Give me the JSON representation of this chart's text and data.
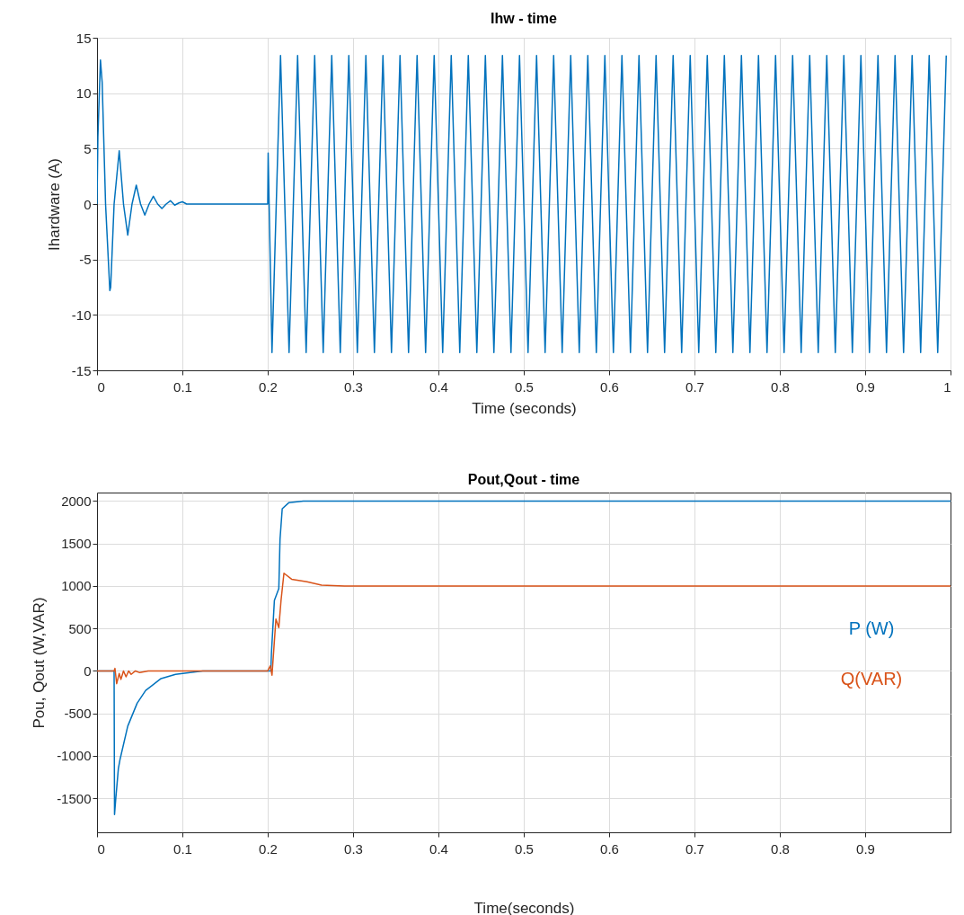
{
  "chart_data": [
    {
      "type": "line",
      "title": "Ihw - time",
      "xlabel": "Time (seconds)",
      "ylabel": "Ihardware      (A)",
      "xlim": [
        0,
        1
      ],
      "ylim": [
        -15,
        15
      ],
      "xticks": [
        0,
        0.1,
        0.2,
        0.3,
        0.4,
        0.5,
        0.6,
        0.7,
        0.8,
        0.9,
        1
      ],
      "yticks": [
        -15,
        -10,
        -5,
        0,
        5,
        10,
        15
      ],
      "grid": true,
      "series": [
        {
          "color": "#0072bd",
          "x": [
            0,
            0.001,
            0.004,
            0.006,
            0.01,
            0.015,
            0.016,
            0.02,
            0.026,
            0.031,
            0.036,
            0.041,
            0.046,
            0.051,
            0.056,
            0.061,
            0.066,
            0.071,
            0.076,
            0.081,
            0.086,
            0.091,
            0.096,
            0.1,
            0.105,
            0.2,
            0.2005,
            0.205,
            0.215,
            0.225,
            0.235,
            0.245,
            0.255,
            0.265,
            0.275,
            0.285,
            0.295,
            0.305,
            0.315,
            0.325,
            0.335,
            0.345,
            0.355,
            0.365,
            0.375,
            0.385,
            0.395,
            0.405,
            0.415,
            0.425,
            0.435,
            0.445,
            0.455,
            0.465,
            0.475,
            0.485,
            0.495,
            0.505,
            0.515,
            0.525,
            0.535,
            0.545,
            0.555,
            0.565,
            0.575,
            0.585,
            0.595,
            0.605,
            0.615,
            0.625,
            0.635,
            0.645,
            0.655,
            0.665,
            0.675,
            0.685,
            0.695,
            0.705,
            0.715,
            0.725,
            0.735,
            0.745,
            0.755,
            0.765,
            0.775,
            0.785,
            0.795,
            0.805,
            0.815,
            0.825,
            0.835,
            0.845,
            0.855,
            0.865,
            0.875,
            0.885,
            0.895,
            0.905,
            0.915,
            0.925,
            0.935,
            0.945,
            0.955,
            0.965,
            0.975,
            0.985,
            0.995
          ],
          "values": [
            0,
            6,
            13,
            11,
            0,
            -7.8,
            -7.5,
            0,
            4.8,
            0,
            -2.8,
            0,
            1.7,
            0,
            -1.0,
            0,
            0.7,
            0,
            -0.4,
            0,
            0.3,
            -0.1,
            0.1,
            0.2,
            0,
            0,
            4.6,
            -13.4,
            13.4,
            -13.4,
            13.4,
            -13.4,
            13.4,
            -13.4,
            13.4,
            -13.4,
            13.4,
            -13.4,
            13.4,
            -13.4,
            13.4,
            -13.4,
            13.4,
            -13.4,
            13.4,
            -13.4,
            13.4,
            -13.4,
            13.4,
            -13.4,
            13.4,
            -13.4,
            13.4,
            -13.4,
            13.4,
            -13.4,
            13.4,
            -13.4,
            13.4,
            -13.4,
            13.4,
            -13.4,
            13.4,
            -13.4,
            13.4,
            -13.4,
            13.4,
            -13.4,
            13.4,
            -13.4,
            13.4,
            -13.4,
            13.4,
            -13.4,
            13.4,
            -13.4,
            13.4,
            -13.4,
            13.4,
            -13.4,
            13.4,
            -13.4,
            13.4,
            -13.4,
            13.4,
            -13.4,
            13.4,
            -13.4,
            13.4,
            -13.4,
            13.4,
            -13.4,
            13.4,
            -13.4,
            13.4,
            -13.4,
            13.4,
            -13.4,
            13.4,
            -13.4,
            13.4,
            -13.4,
            13.4,
            -13.4,
            13.4,
            -13.4,
            13.4
          ]
        }
      ]
    },
    {
      "type": "line",
      "title": "Pout,Qout - time",
      "xlabel": "Time(seconds)",
      "ylabel": "Pou, Qout      (W,VAR)",
      "xlim": [
        0,
        1
      ],
      "ylim": [
        -1900,
        2100
      ],
      "xticks": [
        0,
        0.1,
        0.2,
        0.3,
        0.4,
        0.5,
        0.6,
        0.7,
        0.8,
        0.9
      ],
      "yticks": [
        -1500,
        -1000,
        -500,
        0,
        500,
        1000,
        1500,
        2000
      ],
      "grid": true,
      "series": [
        {
          "name": "P (W)",
          "color": "#0072bd",
          "x": [
            0,
            0.02,
            0.0205,
            0.022,
            0.025,
            0.027,
            0.036,
            0.047,
            0.057,
            0.075,
            0.092,
            0.124,
            0.2,
            0.2036,
            0.2044,
            0.2078,
            0.213,
            0.2144,
            0.217,
            0.2246,
            0.2417,
            1
          ],
          "values": [
            0,
            0,
            -1690,
            -1500,
            -1150,
            -1040,
            -650,
            -380,
            -230,
            -90,
            -40,
            0,
            0,
            0,
            220,
            830,
            970,
            1550,
            1910,
            1980,
            2000,
            2000
          ]
        },
        {
          "name": "Q(VAR)",
          "color": "#d95319",
          "x": [
            0,
            0.02,
            0.021,
            0.023,
            0.026,
            0.028,
            0.031,
            0.034,
            0.037,
            0.04,
            0.045,
            0.05,
            0.06,
            0.2,
            0.203,
            0.205,
            0.2096,
            0.213,
            0.2156,
            0.219,
            0.228,
            0.246,
            0.263,
            0.29,
            1
          ],
          "values": [
            0,
            0,
            30,
            -150,
            -30,
            -100,
            0,
            -70,
            0,
            -40,
            0,
            -20,
            0,
            0,
            60,
            -50,
            610,
            510,
            830,
            1150,
            1080,
            1050,
            1010,
            1000,
            1000
          ]
        }
      ]
    }
  ]
}
